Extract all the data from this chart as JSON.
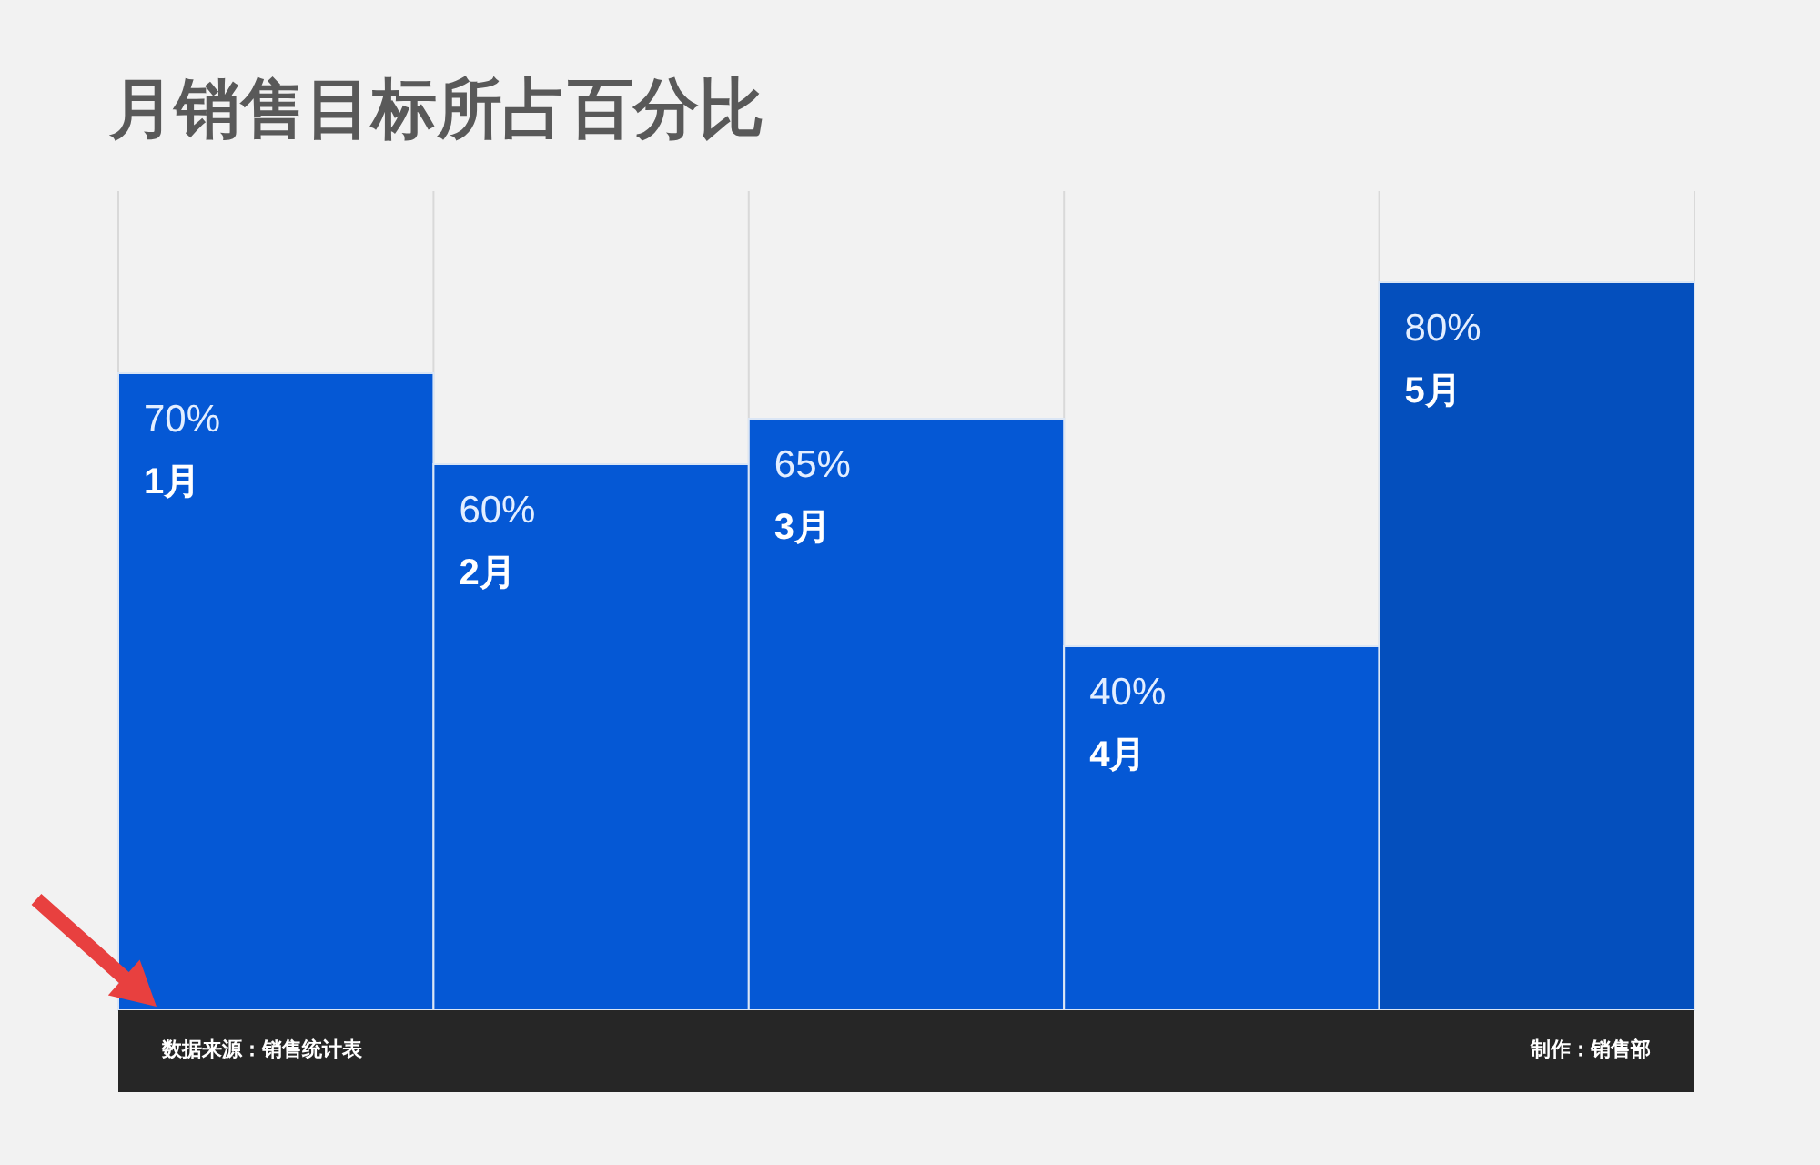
{
  "chart_data": {
    "type": "bar",
    "title": "月销售目标所占百分比",
    "categories": [
      "1月",
      "2月",
      "3月",
      "4月",
      "5月"
    ],
    "values": [
      70,
      60,
      65,
      40,
      80
    ],
    "colors": [
      "#0558d5",
      "#0558d5",
      "#0558d5",
      "#0558d5",
      "#044fbd"
    ],
    "value_labels": [
      "70%",
      "60%",
      "65%",
      "40%",
      "80%"
    ],
    "ylim": [
      0,
      90
    ],
    "grid": "x",
    "tick_labels": "x",
    "annotations": [
      "数据来源：销售统计表",
      "制作：销售部"
    ]
  }
}
